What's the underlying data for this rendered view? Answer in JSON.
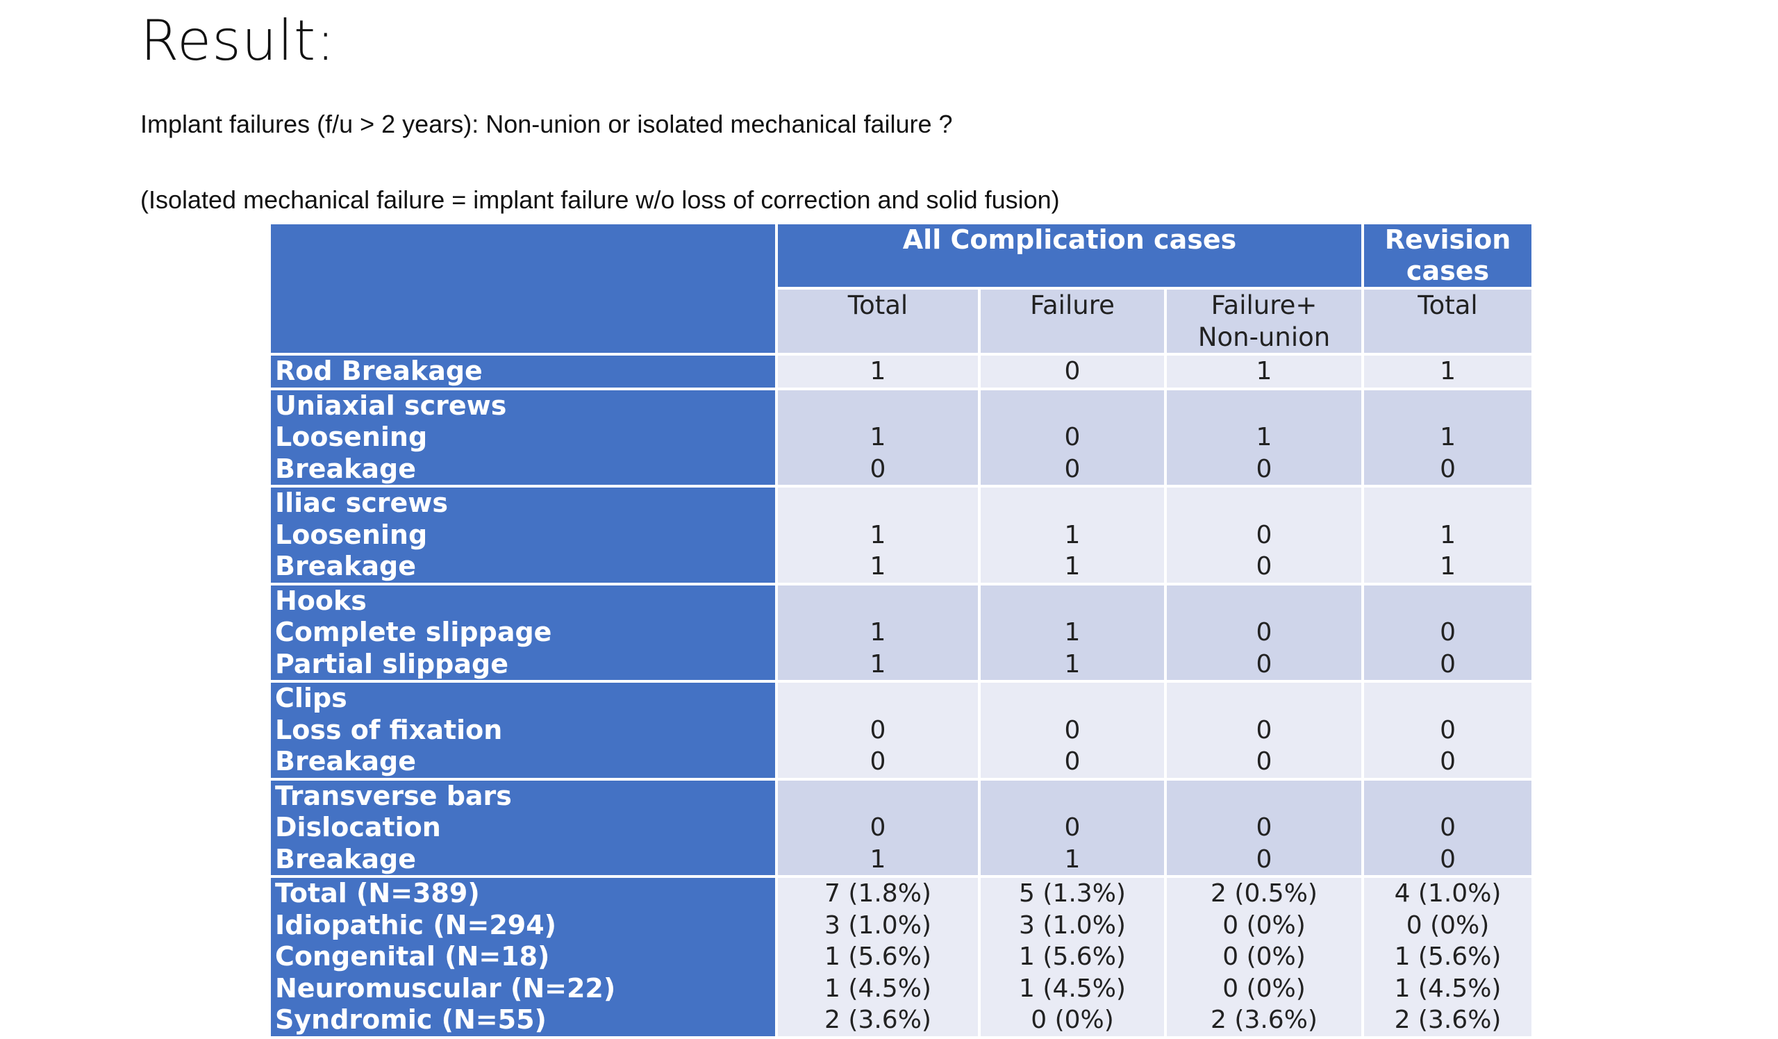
{
  "slide": {
    "title": "Result:",
    "line1": "Implant failures  (f/u > 2 years): Non-union or isolated mechanical failure ?",
    "line2": "(Isolated mechanical failure = implant failure w/o loss of correction and solid fusion)"
  },
  "table": {
    "group_headers": {
      "all": "All Complication cases",
      "revision": "Revision cases"
    },
    "sub_headers": [
      "Total",
      "Failure",
      "Failure+\nNon-union",
      "Total"
    ],
    "rows": [
      {
        "label": "Rod Breakage",
        "total": "1",
        "failure": "0",
        "failure_nonunion": "1",
        "revision_total": "1"
      },
      {
        "label": "Uniaxial screws",
        "total": "",
        "failure": "",
        "failure_nonunion": "",
        "revision_total": ""
      },
      {
        "label": "Loosening",
        "total": "1",
        "failure": "0",
        "failure_nonunion": "1",
        "revision_total": "1"
      },
      {
        "label": "Breakage",
        "total": "0",
        "failure": "0",
        "failure_nonunion": "0",
        "revision_total": "0"
      },
      {
        "label": "Iliac screws",
        "total": "",
        "failure": "",
        "failure_nonunion": "",
        "revision_total": ""
      },
      {
        "label": "Loosening",
        "total": "1",
        "failure": "1",
        "failure_nonunion": "0",
        "revision_total": "1"
      },
      {
        "label": "Breakage",
        "total": "1",
        "failure": "1",
        "failure_nonunion": "0",
        "revision_total": "1"
      },
      {
        "label": "Hooks",
        "total": "",
        "failure": "",
        "failure_nonunion": "",
        "revision_total": ""
      },
      {
        "label": "Complete slippage",
        "total": "1",
        "failure": "1",
        "failure_nonunion": "0",
        "revision_total": "0"
      },
      {
        "label": "Partial slippage",
        "total": "1",
        "failure": "1",
        "failure_nonunion": "0",
        "revision_total": "0"
      },
      {
        "label": "Clips",
        "total": "",
        "failure": "",
        "failure_nonunion": "",
        "revision_total": ""
      },
      {
        "label": "Loss of fixation",
        "total": "0",
        "failure": "0",
        "failure_nonunion": "0",
        "revision_total": "0"
      },
      {
        "label": "Breakage",
        "total": "0",
        "failure": "0",
        "failure_nonunion": "0",
        "revision_total": "0"
      },
      {
        "label": "Transverse bars",
        "total": "",
        "failure": "",
        "failure_nonunion": "",
        "revision_total": ""
      },
      {
        "label": "Dislocation",
        "total": "0",
        "failure": "0",
        "failure_nonunion": "0",
        "revision_total": "0"
      },
      {
        "label": "Breakage",
        "total": "1",
        "failure": "1",
        "failure_nonunion": "0",
        "revision_total": "0"
      },
      {
        "label": "Total (N=389)",
        "total": "7 (1.8%)",
        "failure": "5 (1.3%)",
        "failure_nonunion": "2 (0.5%)",
        "revision_total": "4 (1.0%)"
      },
      {
        "label": "Idiopathic (N=294)",
        "total": "3 (1.0%)",
        "failure": "3 (1.0%)",
        "failure_nonunion": "0 (0%)",
        "revision_total": "0 (0%)"
      },
      {
        "label": "Congenital (N=18)",
        "total": "1 (5.6%)",
        "failure": "1 (5.6%)",
        "failure_nonunion": "0 (0%)",
        "revision_total": "1 (5.6%)"
      },
      {
        "label": "Neuromuscular (N=22)",
        "total": "1 (4.5%)",
        "failure": "1 (4.5%)",
        "failure_nonunion": "0 (0%)",
        "revision_total": "1 (4.5%)"
      },
      {
        "label": "Syndromic (N=55)",
        "total": "2 (3.6%)",
        "failure": "0 (0%)",
        "failure_nonunion": "2 (3.6%)",
        "revision_total": "2 (3.6%)"
      }
    ]
  },
  "colors": {
    "header_blue": "#4472c4",
    "band_light": "#e9ebf5",
    "band_dark": "#cfd5ea"
  }
}
